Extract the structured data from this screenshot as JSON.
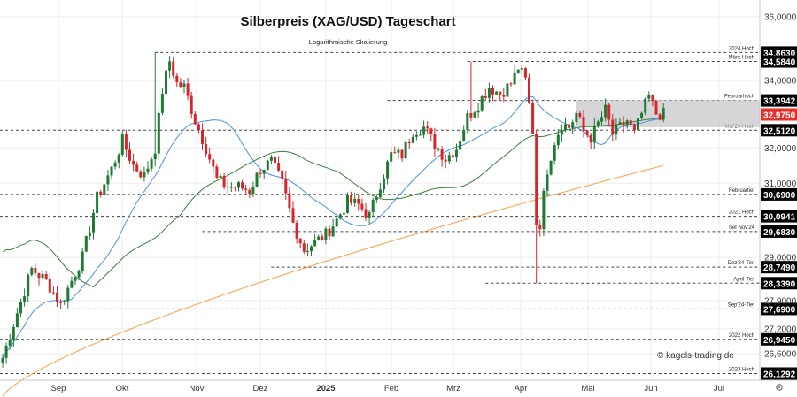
{
  "chart_data": {
    "type": "candlestick",
    "title": "Silberpreis (XAG/USD) Tageschart",
    "subtitle": "Logarithmische Skalierung",
    "scale": "log",
    "ylim": [
      25.6,
      36.4
    ],
    "watermark": "© kagels-trading.de",
    "y_ticks": [
      {
        "value": 36.0,
        "label": "36,0000"
      },
      {
        "value": 34.0,
        "label": "34,0000"
      },
      {
        "value": 32.0,
        "label": "32,0000"
      },
      {
        "value": 31.0,
        "label": "31,0000"
      },
      {
        "value": 29.0,
        "label": "29,0000"
      },
      {
        "value": 27.9,
        "label": "27,9000"
      },
      {
        "value": 27.2,
        "label": "27,2000"
      },
      {
        "value": 26.6,
        "label": "26,6000"
      }
    ],
    "x_ticks": [
      {
        "label": "Sep",
        "bold": false
      },
      {
        "label": "Okt",
        "bold": false
      },
      {
        "label": "Nov",
        "bold": false
      },
      {
        "label": "Dez",
        "bold": false
      },
      {
        "label": "2025",
        "bold": true
      },
      {
        "label": "Feb",
        "bold": false
      },
      {
        "label": "Mrz",
        "bold": false
      },
      {
        "label": "Apr",
        "bold": false
      },
      {
        "label": "Mai",
        "bold": false
      },
      {
        "label": "Jun",
        "bold": false
      },
      {
        "label": "Jul",
        "bold": false
      }
    ],
    "levels": [
      {
        "name": "2024 Hoch",
        "value": 34.863,
        "label": "34,8630",
        "from_day": 42
      },
      {
        "name": "März-Hoch",
        "value": 34.584,
        "label": "34,5840",
        "from_day": 128
      },
      {
        "name": "Februarhoch",
        "value": 33.3942,
        "label": "33,3942",
        "from_day": 106
      },
      {
        "name": "Mai'24-Hoch",
        "value": 32.512,
        "label": "32,5120",
        "from_day": 0
      },
      {
        "name": "Februartief",
        "value": 30.69,
        "label": "30,6900",
        "from_day": 0
      },
      {
        "name": "2021 Hoch",
        "value": 30.0941,
        "label": "30,0941",
        "from_day": 0
      },
      {
        "name": "Tief Nov'24",
        "value": 29.683,
        "label": "29,6830",
        "from_day": 55
      },
      {
        "name": "Dez'24-Tief",
        "value": 28.749,
        "label": "28,7490",
        "from_day": 74
      },
      {
        "name": "April-Tief",
        "value": 28.339,
        "label": "28,3390",
        "from_day": 133
      },
      {
        "name": "Sep'24-Tief",
        "value": 27.69,
        "label": "27,6900",
        "from_day": 16
      },
      {
        "name": "2022 Hoch",
        "value": 26.945,
        "label": "26,9450",
        "from_day": 0
      },
      {
        "name": "2023 Hoch",
        "value": 26.1292,
        "label": "26,1292",
        "from_day": 0
      }
    ],
    "current_price": {
      "value": 32.975,
      "label": "32,9750"
    },
    "zone": {
      "low": 32.6,
      "high": 33.4,
      "from_day": 158,
      "to_day": 182
    },
    "series": [
      {
        "name": "Silber Tageskerzen",
        "type": "candlestick"
      },
      {
        "name": "SMA 20",
        "type": "line",
        "color": "#4a90e2"
      },
      {
        "name": "SMA 50",
        "type": "line",
        "color": "#3c7d3c"
      },
      {
        "name": "SMA 200",
        "type": "line",
        "color": "#f5a04a"
      }
    ]
  }
}
